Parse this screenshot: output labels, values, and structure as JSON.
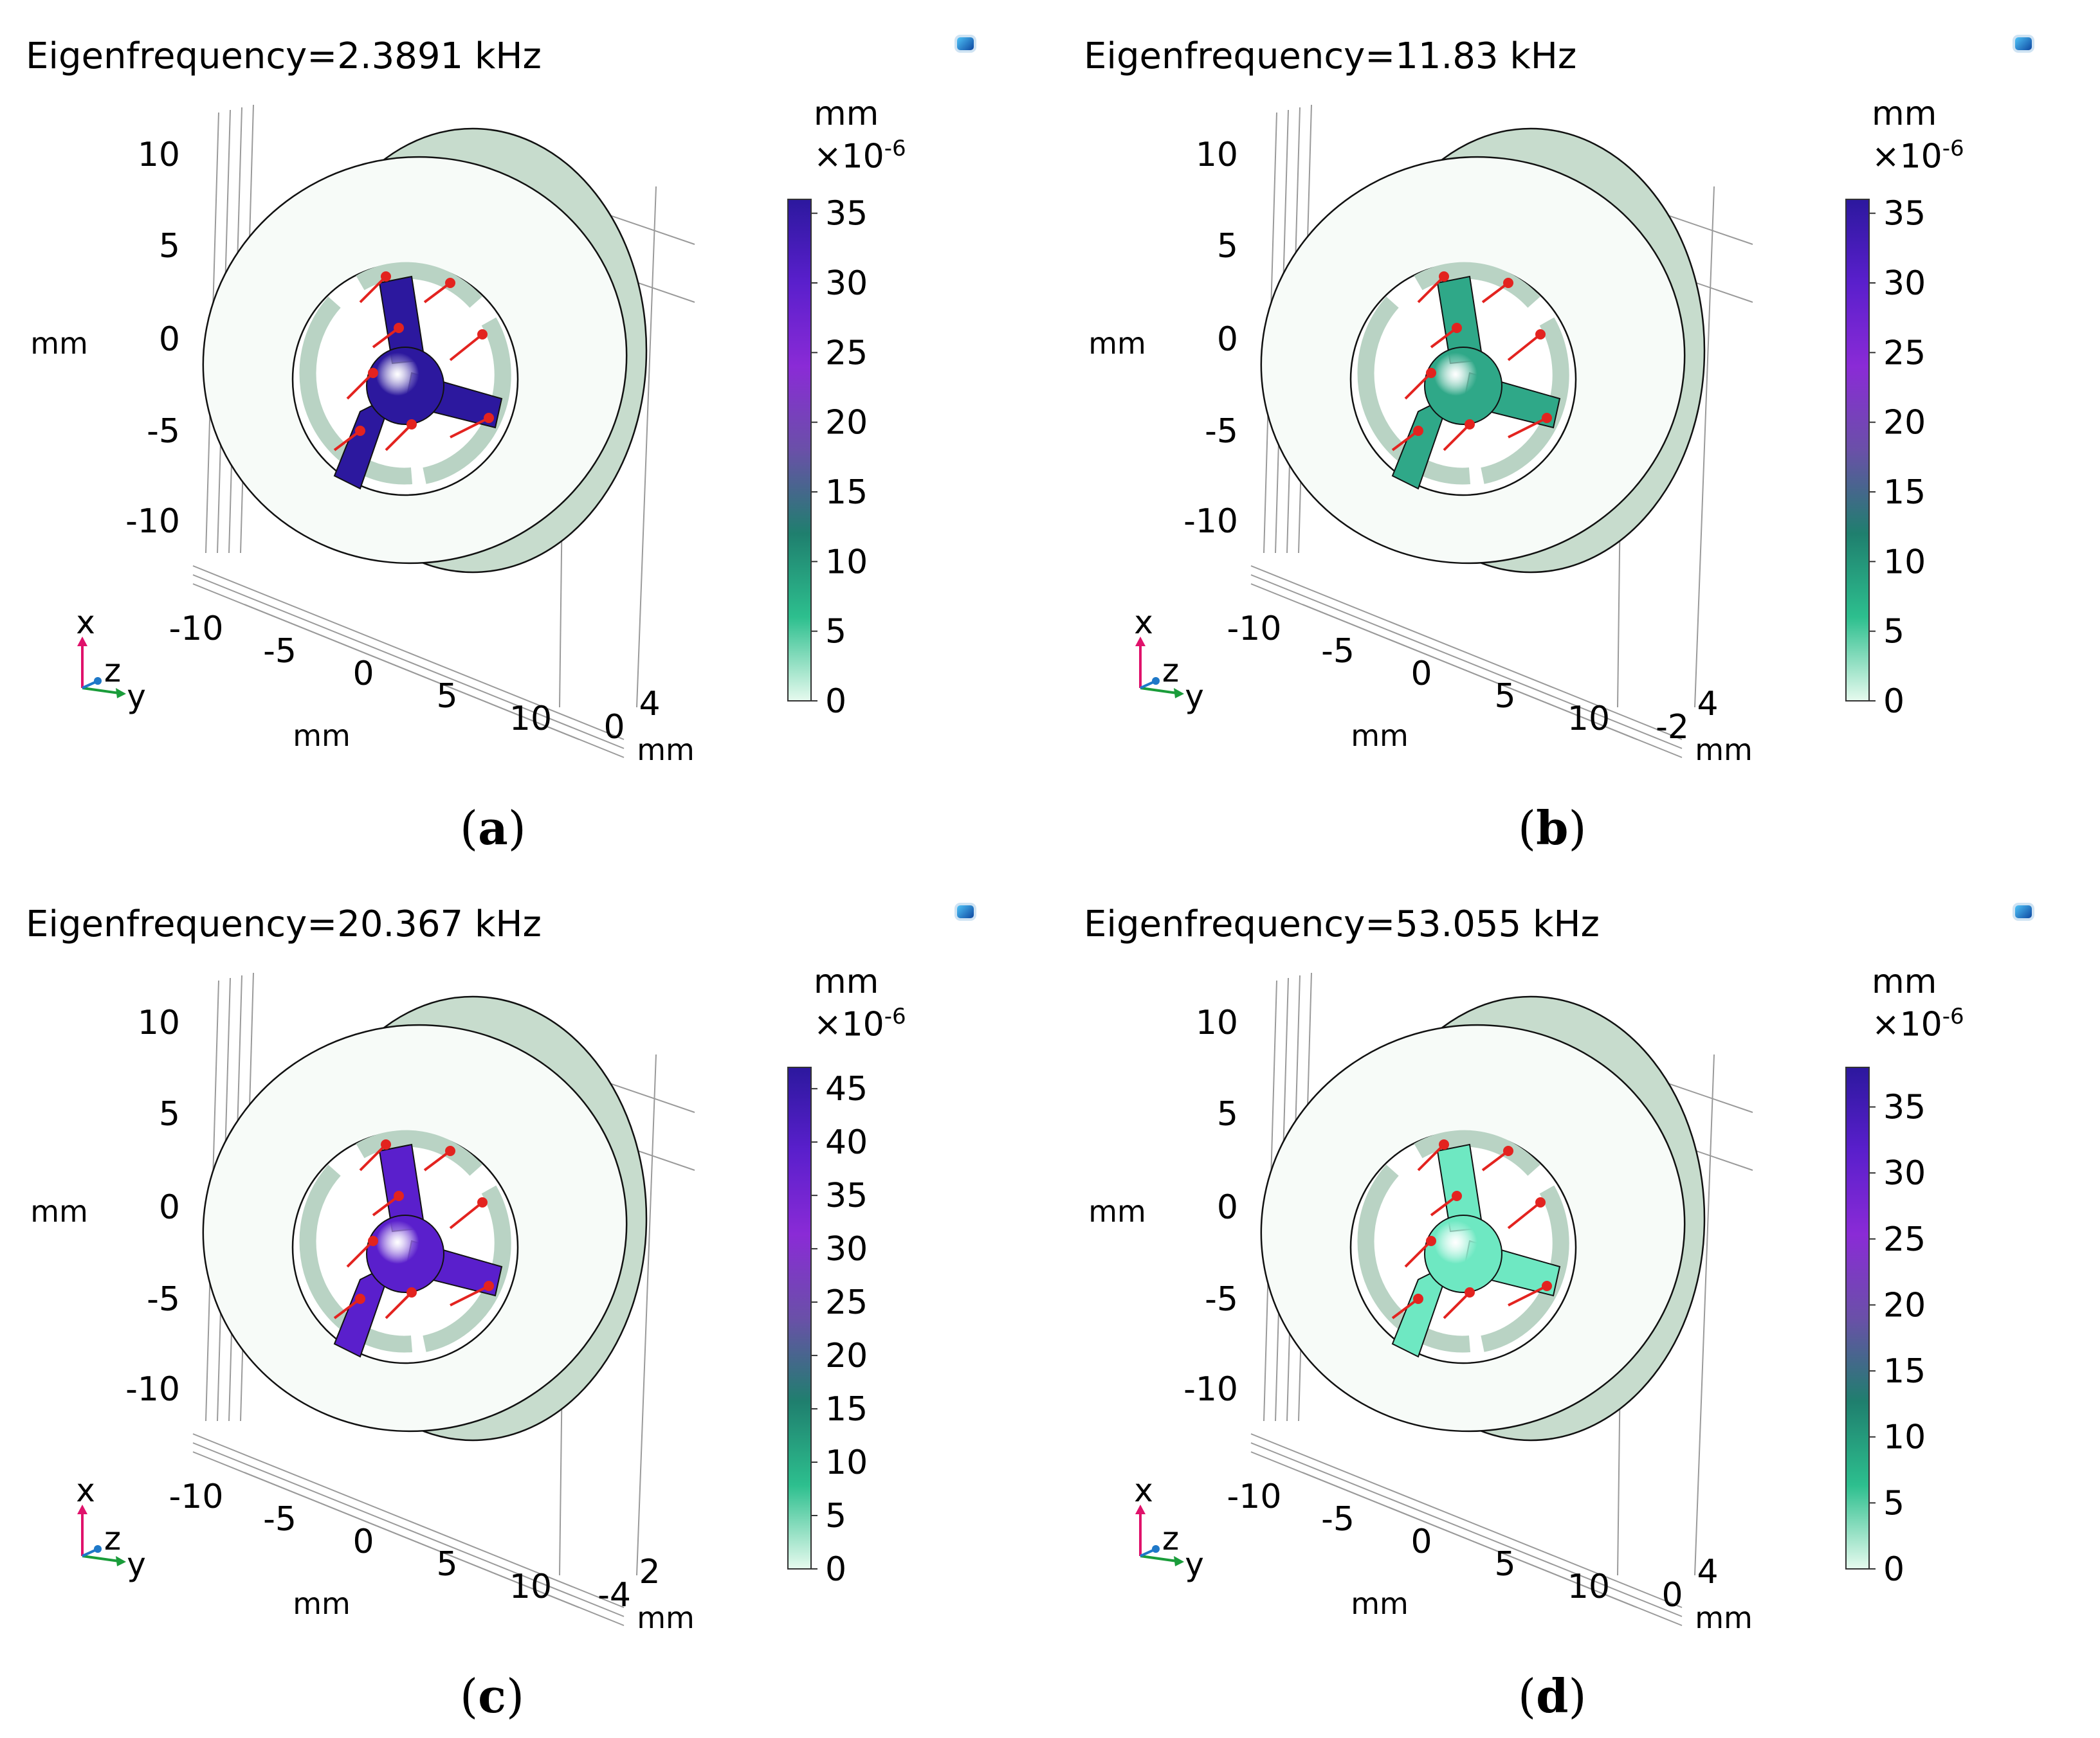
{
  "panels": [
    {
      "id": "a",
      "title": "Eigenfrequency=2.3891 kHz",
      "caption": "a",
      "colorbar": {
        "unit": "mm",
        "multiplier": "×10",
        "exponent": "-6",
        "ticks": [
          "35",
          "30",
          "25",
          "20",
          "15",
          "10",
          "5",
          "0"
        ],
        "max": 36
      },
      "z_ticks": [
        "10",
        "5",
        "0",
        "-5",
        "-10"
      ],
      "z_unit": "mm",
      "y_ticks": [
        "-10",
        "-5",
        "0",
        "5",
        "10"
      ],
      "y_unit": "mm",
      "x_ticks": [
        "0",
        "4"
      ],
      "x_unit": "mm",
      "triad": {
        "x": "x",
        "z": "z",
        "y": "y"
      },
      "hub_color": "#2c189e"
    },
    {
      "id": "b",
      "title": "Eigenfrequency=11.83 kHz",
      "caption": "b",
      "colorbar": {
        "unit": "mm",
        "multiplier": "×10",
        "exponent": "-6",
        "ticks": [
          "35",
          "30",
          "25",
          "20",
          "15",
          "10",
          "5",
          "0"
        ],
        "max": 36
      },
      "z_ticks": [
        "10",
        "5",
        "0",
        "-5",
        "-10"
      ],
      "z_unit": "mm",
      "y_ticks": [
        "-10",
        "-5",
        "0",
        "5",
        "10"
      ],
      "y_unit": "mm",
      "x_ticks": [
        "-2",
        "4"
      ],
      "x_unit": "mm",
      "triad": {
        "x": "x",
        "z": "z",
        "y": "y"
      },
      "hub_color": "#2fa888"
    },
    {
      "id": "c",
      "title": "Eigenfrequency=20.367 kHz",
      "caption": "c",
      "colorbar": {
        "unit": "mm",
        "multiplier": "×10",
        "exponent": "-6",
        "ticks": [
          "45",
          "40",
          "35",
          "30",
          "25",
          "20",
          "15",
          "10",
          "5",
          "0"
        ],
        "max": 47
      },
      "z_ticks": [
        "10",
        "5",
        "0",
        "-5",
        "-10"
      ],
      "z_unit": "mm",
      "y_ticks": [
        "-10",
        "-5",
        "0",
        "5",
        "10"
      ],
      "y_unit": "mm",
      "x_ticks": [
        "-4",
        "2"
      ],
      "x_unit": "mm",
      "triad": {
        "x": "x",
        "z": "z",
        "y": "y"
      },
      "hub_color": "#5a1fcc"
    },
    {
      "id": "d",
      "title": "Eigenfrequency=53.055 kHz",
      "caption": "d",
      "colorbar": {
        "unit": "mm",
        "multiplier": "×10",
        "exponent": "-6",
        "ticks": [
          "35",
          "30",
          "25",
          "20",
          "15",
          "10",
          "5",
          "0"
        ],
        "max": 38
      },
      "z_ticks": [
        "10",
        "5",
        "0",
        "-5",
        "-10"
      ],
      "z_unit": "mm",
      "y_ticks": [
        "-10",
        "-5",
        "0",
        "5",
        "10"
      ],
      "y_unit": "mm",
      "x_ticks": [
        "0",
        "4"
      ],
      "x_unit": "mm",
      "triad": {
        "x": "x",
        "z": "z",
        "y": "y"
      },
      "hub_color": "#6ee8c2"
    }
  ],
  "colors": {
    "ring_face": "#f7fbf8",
    "ring_side": "#c7dccd",
    "ring_edge": "#111111",
    "arrow": "#e3231f",
    "gradient": [
      "#e6faee",
      "#2dbf8e",
      "#1f7f6e",
      "#6a50a8",
      "#8a2bd6",
      "#5a1fcc",
      "#2c189e"
    ]
  }
}
